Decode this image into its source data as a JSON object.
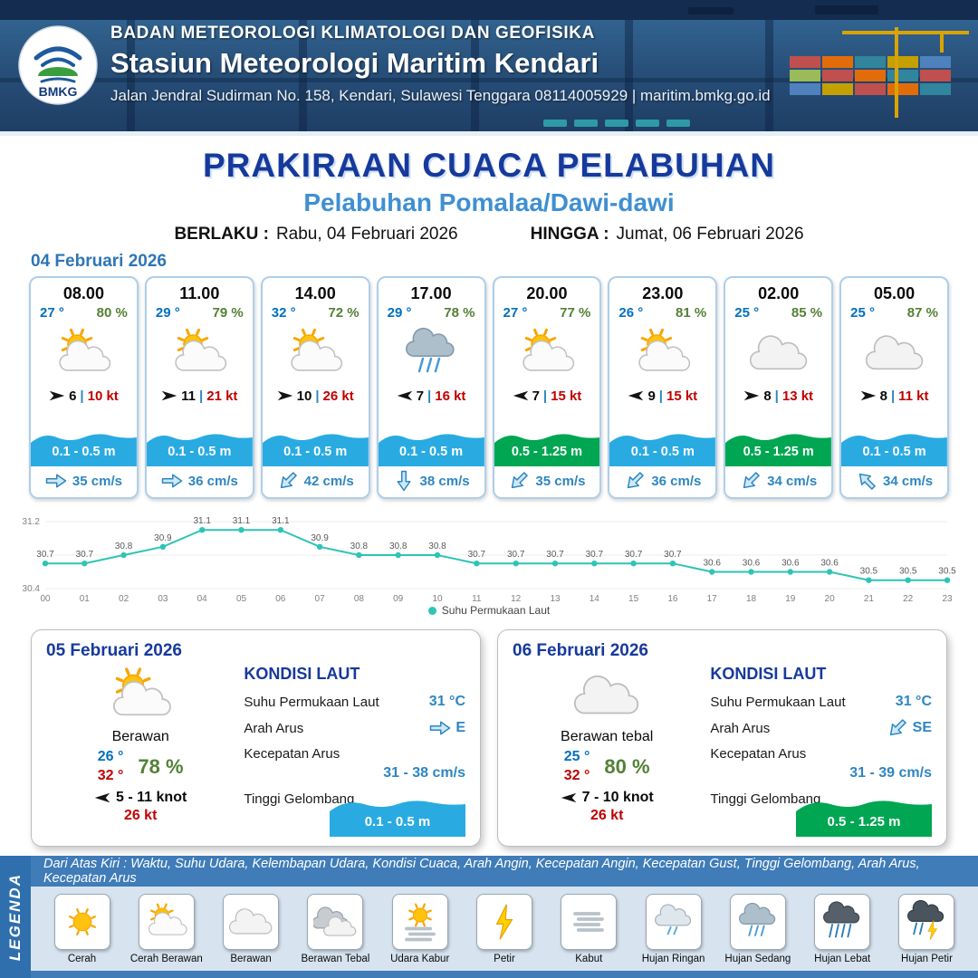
{
  "header": {
    "agency": "BADAN METEOROLOGI KLIMATOLOGI DAN GEOFISIKA",
    "station": "Stasiun Meteorologi Maritim Kendari",
    "address": "Jalan Jendral Sudirman No. 158, Kendari, Sulawesi Tenggara  08114005929 | maritim.bmkg.go.id",
    "logo_text": "BMKG"
  },
  "title": {
    "main": "PRAKIRAAN CUACA PELABUHAN",
    "subtitle": "Pelabuhan Pomalaa/Dawi-dawi",
    "berlaku_label": "BERLAKU :",
    "berlaku_value": "Rabu, 04 Februari 2026",
    "hingga_label": "HINGGA :",
    "hingga_value": "Jumat, 06 Februari 2026"
  },
  "hourly": {
    "date": "04 Februari 2026",
    "sep": "|",
    "cards": [
      {
        "time": "08.00",
        "temp": "27 °",
        "rh": "80 %",
        "icon": "cerah-berawan",
        "wind_rot": 0,
        "wind_speed": "6",
        "gust": "10 kt",
        "wave": "0.1 - 0.5 m",
        "wave_color": "#29abe2",
        "current_rot": 0,
        "current": "35 cm/s"
      },
      {
        "time": "11.00",
        "temp": "29 °",
        "rh": "79 %",
        "icon": "cerah-berawan",
        "wind_rot": 0,
        "wind_speed": "11",
        "gust": "21 kt",
        "wave": "0.1 - 0.5 m",
        "wave_color": "#29abe2",
        "current_rot": 0,
        "current": "36 cm/s"
      },
      {
        "time": "14.00",
        "temp": "32 °",
        "rh": "72 %",
        "icon": "cerah-berawan",
        "wind_rot": 0,
        "wind_speed": "10",
        "gust": "26 kt",
        "wave": "0.1 - 0.5 m",
        "wave_color": "#29abe2",
        "current_rot": 135,
        "current": "42 cm/s"
      },
      {
        "time": "17.00",
        "temp": "29 °",
        "rh": "78 %",
        "icon": "hujan-sedang",
        "wind_rot": 180,
        "wind_speed": "7",
        "gust": "16 kt",
        "wave": "0.1 - 0.5 m",
        "wave_color": "#29abe2",
        "current_rot": 90,
        "current": "38 cm/s"
      },
      {
        "time": "20.00",
        "temp": "27 °",
        "rh": "77 %",
        "icon": "cerah-berawan",
        "wind_rot": 180,
        "wind_speed": "7",
        "gust": "15 kt",
        "wave": "0.5 - 1.25 m",
        "wave_color": "#00a651",
        "current_rot": 135,
        "current": "35 cm/s"
      },
      {
        "time": "23.00",
        "temp": "26 °",
        "rh": "81 %",
        "icon": "cerah-berawan",
        "wind_rot": 180,
        "wind_speed": "9",
        "gust": "15 kt",
        "wave": "0.1 - 0.5 m",
        "wave_color": "#29abe2",
        "current_rot": 135,
        "current": "36 cm/s"
      },
      {
        "time": "02.00",
        "temp": "25 °",
        "rh": "85 %",
        "icon": "berawan",
        "wind_rot": 0,
        "wind_speed": "8",
        "gust": "13 kt",
        "wave": "0.5 - 1.25 m",
        "wave_color": "#00a651",
        "current_rot": 135,
        "current": "34 cm/s"
      },
      {
        "time": "05.00",
        "temp": "25 °",
        "rh": "87 %",
        "icon": "berawan",
        "wind_rot": 0,
        "wind_speed": "8",
        "gust": "11 kt",
        "wave": "0.1 - 0.5 m",
        "wave_color": "#29abe2",
        "current_rot": 225,
        "current": "34 cm/s"
      }
    ]
  },
  "chart_data": {
    "type": "line",
    "series_name": "Suhu Permukaan Laut",
    "x": [
      "00",
      "01",
      "02",
      "03",
      "04",
      "05",
      "06",
      "07",
      "08",
      "09",
      "10",
      "11",
      "12",
      "13",
      "14",
      "15",
      "16",
      "17",
      "18",
      "19",
      "20",
      "21",
      "22",
      "23"
    ],
    "values": [
      30.7,
      30.7,
      30.8,
      30.9,
      31.1,
      31.1,
      31.1,
      30.9,
      30.8,
      30.8,
      30.8,
      30.7,
      30.7,
      30.7,
      30.7,
      30.7,
      30.7,
      30.6,
      30.6,
      30.6,
      30.6,
      30.5,
      30.5,
      30.5
    ],
    "ylim": [
      30.4,
      31.2
    ],
    "line_color": "#2ec4b6",
    "grid": true,
    "legend_position": "bottom"
  },
  "labels": {
    "kondisi_laut": "KONDISI LAUT",
    "sst": "Suhu Permukaan Laut",
    "arah_arus": "Arah Arus",
    "kecepatan_arus": "Kecepatan Arus",
    "tinggi_gelombang": "Tinggi Gelombang"
  },
  "days": [
    {
      "date": "05 Februari 2026",
      "condition": "Berawan",
      "icon": "cerah-berawan",
      "temp_min": "26 °",
      "temp_max": "32 °",
      "rh": "78 %",
      "wind_rot": 180,
      "wind": "5 - 11 knot",
      "gust": "26 kt",
      "sst": "31 °C",
      "current_dir": "E",
      "current_rot": 0,
      "current_speed": "31 - 38 cm/s",
      "wave": "0.1 - 0.5 m",
      "wave_color": "#29abe2"
    },
    {
      "date": "06 Februari 2026",
      "condition": "Berawan tebal",
      "icon": "berawan",
      "temp_min": "25 °",
      "temp_max": "32 °",
      "rh": "80 %",
      "wind_rot": 180,
      "wind": "7 - 10 knot",
      "gust": "26 kt",
      "sst": "31 °C",
      "current_dir": "SE",
      "current_rot": 135,
      "current_speed": "31 - 39 cm/s",
      "wave": "0.5 - 1.25 m",
      "wave_color": "#00a651"
    }
  ],
  "legend": {
    "band": "LEGENDA",
    "description": "Dari Atas Kiri : Waktu, Suhu Udara, Kelembapan Udara, Kondisi Cuaca, Arah Angin, Kecepatan Angin, Kecepatan Gust, Tinggi Gelombang, Arah Arus, Kecepatan Arus",
    "items": [
      {
        "label": "Cerah",
        "icon": "cerah"
      },
      {
        "label": "Cerah Berawan",
        "icon": "cerah-berawan"
      },
      {
        "label": "Berawan",
        "icon": "berawan"
      },
      {
        "label": "Berawan Tebal",
        "icon": "berawan-tebal"
      },
      {
        "label": "Udara Kabur",
        "icon": "udara-kabur"
      },
      {
        "label": "Petir",
        "icon": "petir"
      },
      {
        "label": "Kabut",
        "icon": "kabut"
      },
      {
        "label": "Hujan Ringan",
        "icon": "hujan-ringan"
      },
      {
        "label": "Hujan Sedang",
        "icon": "hujan-sedang"
      },
      {
        "label": "Hujan Lebat",
        "icon": "hujan-lebat"
      },
      {
        "label": "Hujan Petir",
        "icon": "hujan-petir"
      }
    ]
  }
}
